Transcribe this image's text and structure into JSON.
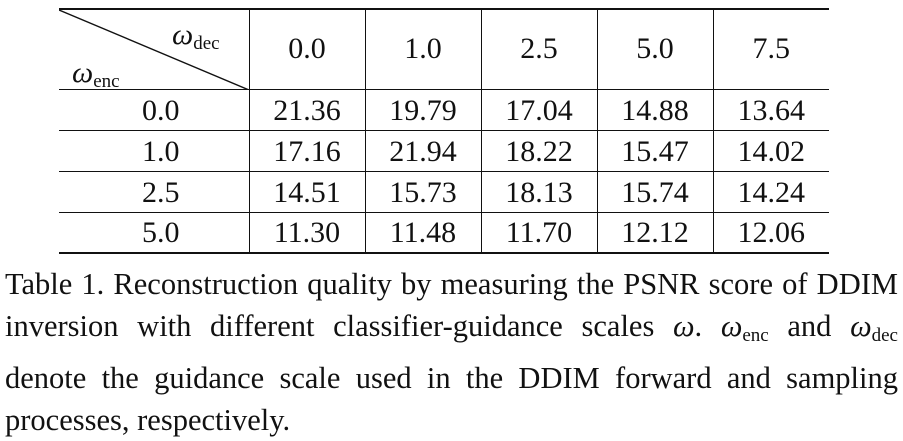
{
  "table": {
    "row_axis_symbol": "ω",
    "row_axis_subscript": "enc",
    "col_axis_symbol": "ω",
    "col_axis_subscript": "dec",
    "col_headers": [
      "0.0",
      "1.0",
      "2.5",
      "5.0",
      "7.5"
    ],
    "rows": [
      {
        "label": "0.0",
        "values": [
          "21.36",
          "19.79",
          "17.04",
          "14.88",
          "13.64"
        ],
        "best_index": 0
      },
      {
        "label": "1.0",
        "values": [
          "17.16",
          "21.94",
          "18.22",
          "15.47",
          "14.02"
        ],
        "best_index": 1
      },
      {
        "label": "2.5",
        "values": [
          "14.51",
          "15.73",
          "18.13",
          "15.74",
          "14.24"
        ],
        "best_index": 2
      },
      {
        "label": "5.0",
        "values": [
          "11.30",
          "11.48",
          "11.70",
          "12.12",
          "12.06"
        ],
        "best_index": 3
      }
    ]
  },
  "caption": {
    "part1": "Table 1. Reconstruction quality by measuring the PSNR score of DDIM inversion with different classifier-guidance scales ",
    "omega": "ω",
    "part2": ". ",
    "enc_sub": "enc",
    "part3": " and ",
    "dec_sub": "dec",
    "part4": " denote the guidance scale used in the DDIM forward and sampling processes, respectively."
  }
}
